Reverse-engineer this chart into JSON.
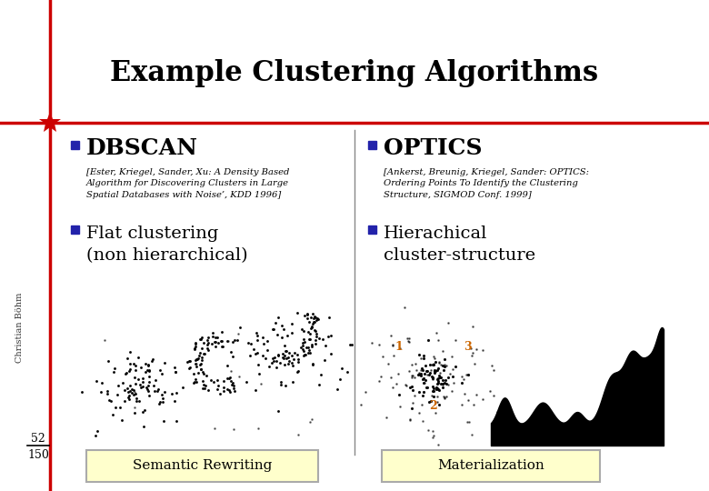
{
  "title": "Example Clustering Algorithms",
  "title_fontsize": 22,
  "bg_color": "#ffffff",
  "red_color": "#cc0000",
  "gray_color": "#888888",
  "bullet_color": "#2222aa",
  "button_bg": "#ffffcc",
  "button_border": "#aaaaaa",
  "sidebar_text": "Christian Böhm",
  "page_num_top": "52",
  "page_num_bot": "150",
  "left_col": {
    "bullet_title": "DBSCAN",
    "ref_text": "[Ester, Kriegel, Sander, Xu: A Density Based\nAlgorithm for Discovering Clusters in Large\nSpatial Databases with Noise’, KDD 1996]",
    "sub_bullet": "Flat clustering\n(non hierarchical)",
    "button_text": "Semantic Rewriting"
  },
  "right_col": {
    "bullet_title": "OPTICS",
    "ref_text": "[Ankerst, Breunig, Kriegel, Sander: OPTICS:\nOrdering Points To Identify the Clustering\nStructure, SIGMOD Conf. 1999]",
    "sub_bullet": "Hierachical\ncluster-structure",
    "button_text": "Materialization"
  }
}
